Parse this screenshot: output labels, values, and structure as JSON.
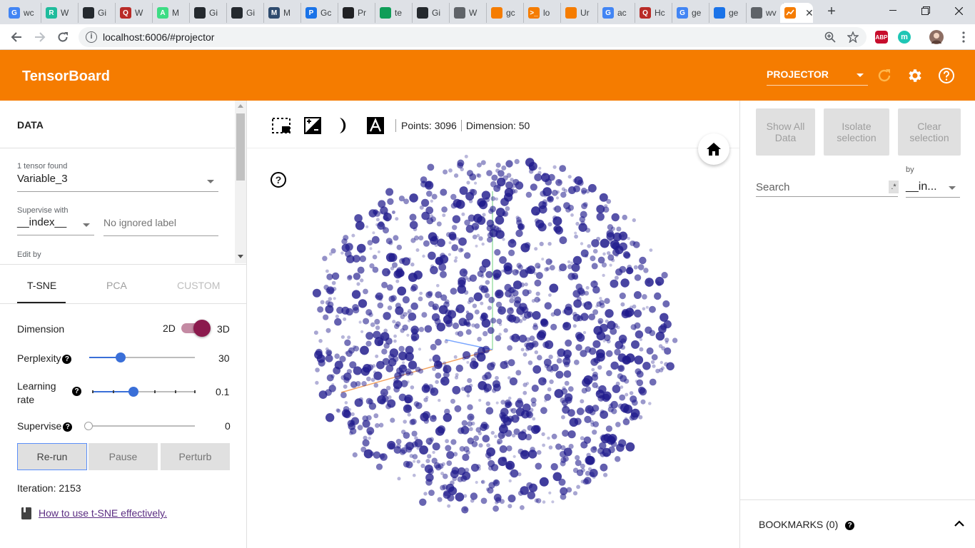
{
  "browser": {
    "tabs": [
      {
        "favicon": "google-icon",
        "title": "wc",
        "color": "#4285f4",
        "glyph": "G"
      },
      {
        "favicon": "r-icon",
        "title": "W",
        "color": "#1fbc9c",
        "glyph": "R"
      },
      {
        "favicon": "github-icon",
        "title": "Gi",
        "color": "#24292e",
        "glyph": ""
      },
      {
        "favicon": "quora-icon",
        "title": "W",
        "color": "#b92b27",
        "glyph": "Q"
      },
      {
        "favicon": "android-icon",
        "title": "M",
        "color": "#3ddc84",
        "glyph": "A"
      },
      {
        "favicon": "github-icon",
        "title": "Gi",
        "color": "#24292e",
        "glyph": ""
      },
      {
        "favicon": "github-icon",
        "title": "Gi",
        "color": "#24292e",
        "glyph": ""
      },
      {
        "favicon": "medium-icon",
        "title": "M",
        "color": "#2f4b6e",
        "glyph": "M"
      },
      {
        "favicon": "pytorch-icon",
        "title": "Gc",
        "color": "#1a73e8",
        "glyph": "P"
      },
      {
        "favicon": "book-icon",
        "title": "Pr",
        "color": "#202124",
        "glyph": ""
      },
      {
        "favicon": "sheet-icon",
        "title": "te",
        "color": "#0f9d58",
        "glyph": ""
      },
      {
        "favicon": "github-icon",
        "title": "Gi",
        "color": "#24292e",
        "glyph": ""
      },
      {
        "favicon": "globe-icon",
        "title": "W",
        "color": "#5f6368",
        "glyph": ""
      },
      {
        "favicon": "spinner-icon",
        "title": "gc",
        "color": "#f57c00",
        "glyph": ""
      },
      {
        "favicon": "terminal-icon",
        "title": "lo",
        "color": "#f57c00",
        "glyph": ">_"
      },
      {
        "favicon": "book-orange-icon",
        "title": "Ur",
        "color": "#f57c00",
        "glyph": ""
      },
      {
        "favicon": "google-icon",
        "title": "ac",
        "color": "#4285f4",
        "glyph": "G"
      },
      {
        "favicon": "quora-icon",
        "title": "Hc",
        "color": "#b92b27",
        "glyph": "Q"
      },
      {
        "favicon": "google-icon",
        "title": "ge",
        "color": "#4285f4",
        "glyph": "G"
      },
      {
        "favicon": "globe-blue-icon",
        "title": "ge",
        "color": "#1a73e8",
        "glyph": ""
      },
      {
        "favicon": "globe-icon",
        "title": "wv",
        "color": "#5f6368",
        "glyph": ""
      }
    ],
    "active_tab": {
      "favicon": "tensorboard-icon",
      "color": "#f57c00"
    },
    "address": "localhost:6006/#projector",
    "extensions": [
      {
        "name": "abp-extension-icon",
        "label": "ABP",
        "color": "#c70d2c"
      },
      {
        "name": "m-extension-icon",
        "label": "m",
        "color": "#1ec6b5"
      }
    ]
  },
  "header": {
    "title": "TensorBoard",
    "selector": "PROJECTOR"
  },
  "left": {
    "data_title": "DATA",
    "tensor_found": "1 tensor found",
    "tensor_value": "Variable_3",
    "supervise_with": "Supervise with",
    "supervise_value": "__index__",
    "ignored_label_placeholder": "No ignored label",
    "edit_by": "Edit by",
    "tabs": [
      "T-SNE",
      "PCA",
      "CUSTOM"
    ],
    "dimension": {
      "label": "Dimension",
      "left": "2D",
      "right": "3D",
      "selected": "3D"
    },
    "perplexity": {
      "label": "Perplexity",
      "value": "30",
      "fraction": 0.3
    },
    "learning_rate": {
      "label1": "Learning",
      "label2": "rate",
      "value": "0.1",
      "fraction": 0.4
    },
    "supervise": {
      "label": "Supervise",
      "value": "0",
      "fraction": 0.0
    },
    "buttons": {
      "rerun": "Re-run",
      "pause": "Pause",
      "perturb": "Perturb"
    },
    "iteration": "Iteration: 2153",
    "howto_link": "How to use t-SNE effectively."
  },
  "center": {
    "points": "Points: 3096",
    "dimension": "Dimension: 50",
    "help": "?"
  },
  "right": {
    "show_all_1": "Show All",
    "show_all_2": "Data",
    "isolate_1": "Isolate",
    "isolate_2": "selection",
    "clear_1": "Clear",
    "clear_2": "selection",
    "search_placeholder": "Search",
    "regex": ".*",
    "by_label": "by",
    "by_value": "__in...",
    "bookmarks": "BOOKMARKS (0)"
  },
  "colors": {
    "accent": "#f57c00",
    "points": "#1f1a8c",
    "toggle": "#8b1a4d",
    "slider": "#3a6fd8",
    "link": "#5b2d82"
  }
}
